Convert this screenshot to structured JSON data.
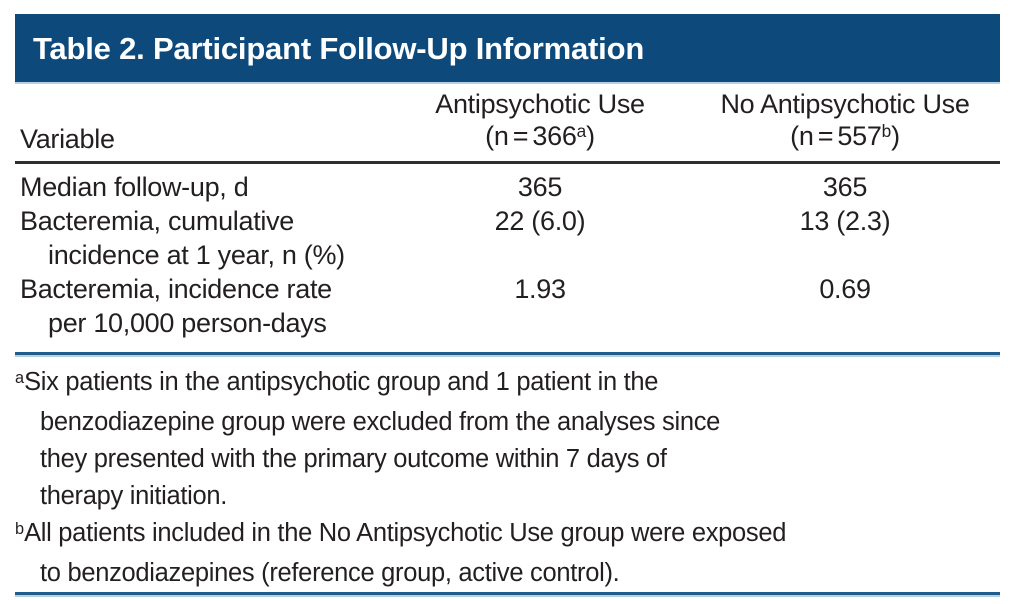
{
  "table": {
    "title": "Table 2. Participant Follow-Up Information",
    "header": {
      "variable_label": "Variable",
      "col1": {
        "name": "Antipsychotic Use",
        "n_prefix": "(n = 366",
        "n_sup": "a",
        "n_suffix": ")"
      },
      "col2": {
        "name": "No Antipsychotic Use",
        "n_prefix": "(n = 557",
        "n_sup": "b",
        "n_suffix": ")"
      }
    },
    "rows": [
      {
        "label_line1": "Median follow-up, d",
        "col1": "365",
        "col2": "365"
      },
      {
        "label_line1": "Bacteremia, cumulative",
        "label_line2": "incidence at 1 year, n (%)",
        "col1": "22 (6.0)",
        "col2": "13 (2.3)"
      },
      {
        "label_line1": "Bacteremia, incidence rate",
        "label_line2": "per 10,000 person-days",
        "col1": "1.93",
        "col2": "0.69"
      }
    ],
    "footnotes": [
      {
        "sup": "a",
        "lines": [
          "Six patients in the antipsychotic group and 1 patient in the",
          "benzodiazepine group were excluded from the analyses since",
          "they presented with the primary outcome within 7 days of",
          "therapy initiation."
        ]
      },
      {
        "sup": "b",
        "lines": [
          "All patients included in the No Antipsychotic Use group were exposed",
          "to benzodiazepines (reference group, active control)."
        ]
      }
    ],
    "colors": {
      "header_band": "#0d4a7b",
      "rule_blue": "#1e5d8c",
      "rule_pale": "#b7cfe0",
      "text": "#231f20"
    }
  }
}
